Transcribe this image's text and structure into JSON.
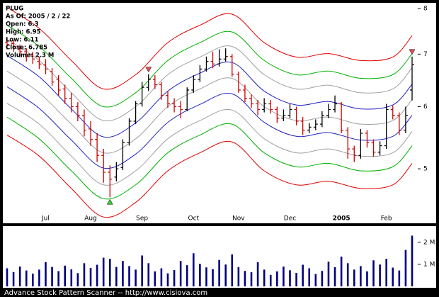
{
  "chart_data": {
    "type": "ohlc",
    "info": [
      "PLUG",
      "As Of: 2005 / 2 / 22",
      "Open: 6.3",
      "High: 6.95",
      "Low: 6.11",
      "Close: 6.785",
      "Volume: 2.3 M"
    ],
    "footer": "Advance Stock Pattern Scanner -- http://www.cisiova.com",
    "categories": [
      null,
      null,
      null,
      null,
      null,
      null,
      "Jul",
      null,
      null,
      null,
      null,
      null,
      null,
      "Aug",
      null,
      null,
      null,
      null,
      null,
      null,
      null,
      "Sep",
      null,
      null,
      null,
      null,
      null,
      null,
      null,
      "Oct",
      null,
      null,
      null,
      null,
      null,
      null,
      "Nov",
      null,
      null,
      null,
      null,
      null,
      null,
      null,
      "Dec",
      null,
      null,
      null,
      null,
      null,
      null,
      null,
      "2005",
      null,
      null,
      null,
      null,
      null,
      null,
      "Feb",
      null,
      null,
      null,
      null
    ],
    "open": [
      7.25,
      7.22,
      7.1,
      7.05,
      6.98,
      6.85,
      6.78,
      6.65,
      6.5,
      6.32,
      6.15,
      6.0,
      5.85,
      5.62,
      5.45,
      5.2,
      4.95,
      4.88,
      5.02,
      5.4,
      5.75,
      6.05,
      6.35,
      6.5,
      6.4,
      6.2,
      6.05,
      6.0,
      5.95,
      6.3,
      6.5,
      6.7,
      6.85,
      6.8,
      6.9,
      6.95,
      6.6,
      6.3,
      6.15,
      6.05,
      5.95,
      6.05,
      5.95,
      5.8,
      5.85,
      5.95,
      5.75,
      5.6,
      5.65,
      5.7,
      5.85,
      5.95,
      6.05,
      5.6,
      5.3,
      5.2,
      5.55,
      5.4,
      5.25,
      5.35,
      5.95,
      5.85,
      5.6,
      6.3
    ],
    "high": [
      7.35,
      7.3,
      7.2,
      7.12,
      7.05,
      6.95,
      6.9,
      6.72,
      6.58,
      6.4,
      6.25,
      6.08,
      5.95,
      5.75,
      5.55,
      5.3,
      5.05,
      5.1,
      5.45,
      5.8,
      6.1,
      6.45,
      6.6,
      6.58,
      6.45,
      6.28,
      6.15,
      6.1,
      6.35,
      6.58,
      6.78,
      6.95,
      7.05,
      7.1,
      7.12,
      7.0,
      6.65,
      6.4,
      6.22,
      6.12,
      6.15,
      6.12,
      6.0,
      5.95,
      6.05,
      6.0,
      5.82,
      5.72,
      5.78,
      5.92,
      6.05,
      6.2,
      6.08,
      5.65,
      5.35,
      5.62,
      5.6,
      5.45,
      5.42,
      6.05,
      6.02,
      5.9,
      6.0,
      6.95
    ],
    "low": [
      7.1,
      7.05,
      6.95,
      6.85,
      6.8,
      6.7,
      6.6,
      6.38,
      6.2,
      6.05,
      5.9,
      5.75,
      5.5,
      5.35,
      5.1,
      4.8,
      4.6,
      4.82,
      4.98,
      5.35,
      5.7,
      6.0,
      6.28,
      6.32,
      6.12,
      5.98,
      5.9,
      5.8,
      5.92,
      6.25,
      6.45,
      6.65,
      6.72,
      6.75,
      6.85,
      6.55,
      6.25,
      6.08,
      5.98,
      5.85,
      5.9,
      5.88,
      5.72,
      5.75,
      5.8,
      5.68,
      5.52,
      5.55,
      5.6,
      5.65,
      5.8,
      5.9,
      5.55,
      5.15,
      5.1,
      5.15,
      5.32,
      5.18,
      5.2,
      5.3,
      5.78,
      5.52,
      5.55,
      6.11
    ],
    "close": [
      7.2,
      7.15,
      7.05,
      6.95,
      6.9,
      6.8,
      6.7,
      6.45,
      6.3,
      6.15,
      6.0,
      5.85,
      5.6,
      5.45,
      5.2,
      4.95,
      4.85,
      5.0,
      5.4,
      5.75,
      6.05,
      6.35,
      6.5,
      6.4,
      6.2,
      6.05,
      6.0,
      5.95,
      6.3,
      6.5,
      6.7,
      6.85,
      6.8,
      6.9,
      6.95,
      6.6,
      6.3,
      6.15,
      6.05,
      5.95,
      6.05,
      5.95,
      5.8,
      5.85,
      5.95,
      5.75,
      5.6,
      5.65,
      5.7,
      5.85,
      5.95,
      6.05,
      5.6,
      5.3,
      5.2,
      5.55,
      5.4,
      5.25,
      5.35,
      5.95,
      5.85,
      5.6,
      5.85,
      6.785
    ],
    "up_color": "#000000",
    "down_color": "#cc0000",
    "ylim": [
      4.27,
      8.12
    ],
    "yscale": "log",
    "yticks": [
      5,
      6,
      7,
      8
    ],
    "bands": {
      "x": [
        0,
        5,
        10,
        15,
        20,
        25,
        30,
        35,
        40,
        45,
        50,
        55,
        60,
        63
      ],
      "series": [
        {
          "color": "#e00000",
          "values": [
            8.03,
            7.55,
            6.87,
            6.32,
            6.59,
            7.24,
            7.62,
            7.87,
            7.24,
            6.94,
            7.01,
            6.87,
            6.94,
            7.39
          ]
        },
        {
          "color": "#00b000",
          "values": [
            7.62,
            7.16,
            6.52,
            6.0,
            6.25,
            6.87,
            7.24,
            7.47,
            6.87,
            6.59,
            6.66,
            6.52,
            6.59,
            7.01
          ]
        },
        {
          "color": "#a0a0a0",
          "values": [
            7.31,
            6.87,
            6.25,
            5.76,
            6.0,
            6.59,
            6.94,
            7.16,
            6.59,
            6.32,
            6.39,
            6.25,
            6.32,
            6.73
          ]
        },
        {
          "color": "#2020c0",
          "values": [
            6.97,
            6.55,
            5.96,
            5.49,
            5.72,
            6.28,
            6.62,
            6.83,
            6.28,
            6.03,
            6.09,
            5.96,
            6.03,
            6.41
          ]
        },
        {
          "color": "#a0a0a0",
          "values": [
            6.66,
            6.25,
            5.7,
            5.24,
            5.46,
            6.0,
            6.32,
            6.52,
            6.0,
            5.76,
            5.82,
            5.7,
            5.76,
            6.13
          ]
        },
        {
          "color": "#2020c0",
          "values": [
            6.36,
            5.97,
            5.44,
            5.01,
            5.22,
            5.73,
            6.04,
            6.23,
            5.73,
            5.5,
            5.56,
            5.44,
            5.5,
            5.85
          ]
        },
        {
          "color": "#a0a0a0",
          "values": [
            6.06,
            5.7,
            5.19,
            4.77,
            4.97,
            5.46,
            5.76,
            5.94,
            5.46,
            5.24,
            5.3,
            5.19,
            5.24,
            5.58
          ]
        },
        {
          "color": "#00b000",
          "values": [
            5.82,
            5.46,
            4.97,
            4.58,
            4.77,
            5.24,
            5.52,
            5.7,
            5.24,
            5.03,
            5.08,
            4.97,
            5.03,
            5.35
          ]
        },
        {
          "color": "#e00000",
          "values": [
            5.52,
            5.19,
            4.72,
            4.34,
            4.53,
            4.97,
            5.24,
            5.41,
            4.97,
            4.77,
            4.82,
            4.72,
            4.77,
            5.08
          ]
        }
      ]
    },
    "signals": {
      "buy": [
        16
      ],
      "sell": [
        22,
        63
      ]
    },
    "volume": {
      "color": "#000080",
      "values": [
        820000,
        650000,
        900000,
        720000,
        580000,
        760000,
        1100000,
        880000,
        690000,
        940000,
        770000,
        600000,
        1050000,
        830000,
        980000,
        1300000,
        1250000,
        880000,
        1150000,
        920000,
        760000,
        1400000,
        1050000,
        680000,
        820000,
        590000,
        740000,
        1150000,
        960000,
        1500000,
        1020000,
        860000,
        780000,
        1200000,
        990000,
        1450000,
        870000,
        700000,
        640000,
        1100000,
        760000,
        520000,
        680000,
        900000,
        730000,
        610000,
        980000,
        820000,
        560000,
        700000,
        1120000,
        870000,
        1350000,
        1050000,
        760000,
        920000,
        680000,
        1180000,
        990000,
        1250000,
        850000,
        720000,
        1650000,
        2300000
      ],
      "ylim": [
        0,
        2700000
      ],
      "yticks": [
        {
          "value": 1000000,
          "label": "1 M"
        },
        {
          "value": 2000000,
          "label": "2 M"
        }
      ]
    }
  }
}
